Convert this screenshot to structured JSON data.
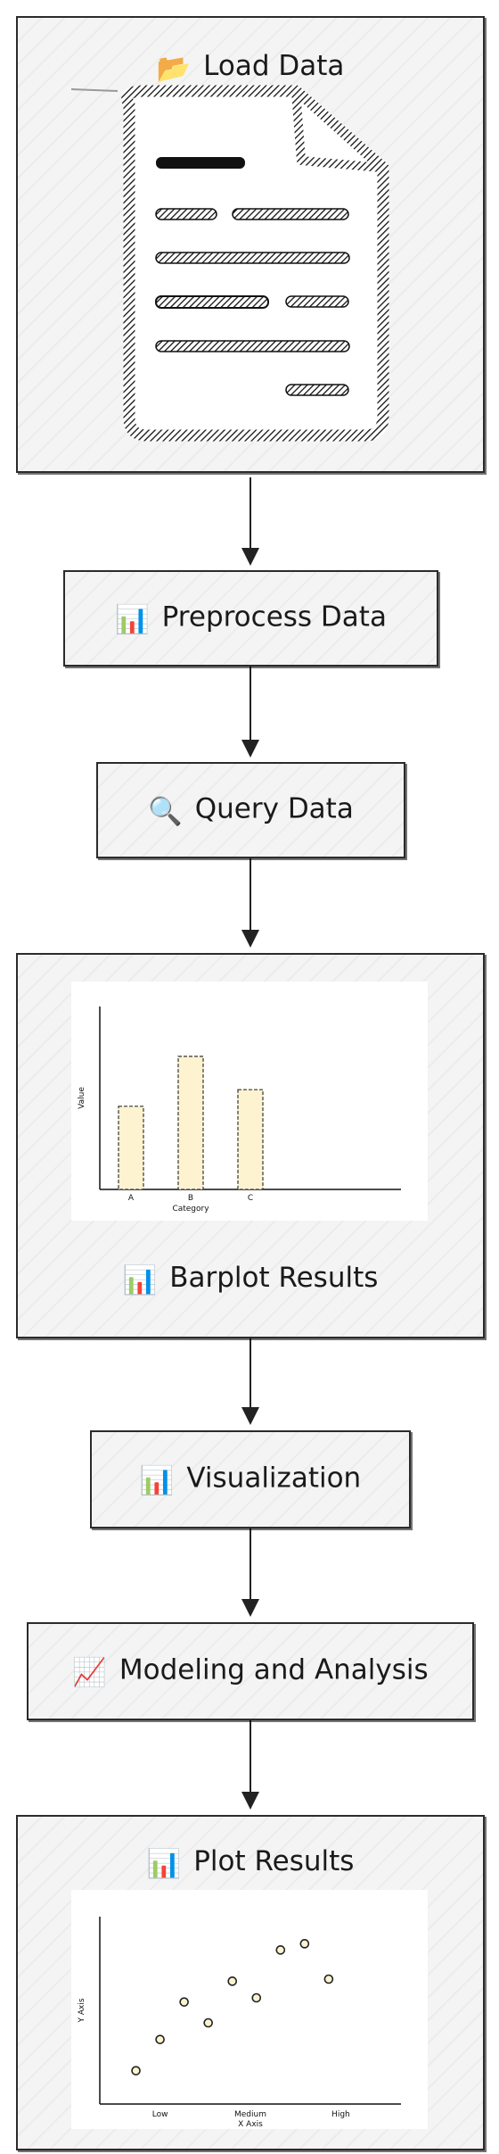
{
  "nodes": [
    {
      "id": "load",
      "label": "Load Data",
      "icon": "folder-icon",
      "emoji": "📂"
    },
    {
      "id": "preprocess",
      "label": "Preprocess Data",
      "icon": "bar-chart-icon",
      "emoji": "📊"
    },
    {
      "id": "query",
      "label": "Query Data",
      "icon": "magnifier-icon",
      "emoji": "🔍"
    },
    {
      "id": "barplot",
      "label": "Barplot Results",
      "icon": "bar-chart-icon",
      "emoji": "📊"
    },
    {
      "id": "viz",
      "label": "Visualization",
      "icon": "bar-chart-icon",
      "emoji": "📊"
    },
    {
      "id": "model",
      "label": "Modeling and Analysis",
      "icon": "trend-chart-icon",
      "emoji": "📈"
    },
    {
      "id": "plot",
      "label": "Plot Results",
      "icon": "bar-chart-icon",
      "emoji": "📊"
    }
  ],
  "chart_data": [
    {
      "type": "bar",
      "categories": [
        "A",
        "B",
        "C"
      ],
      "values": [
        5,
        8,
        6
      ],
      "xlabel": "Category",
      "ylabel": "Value",
      "ylim": [
        0,
        11
      ],
      "bar_fill": "#fdf3d0",
      "bar_stroke": "#333333"
    },
    {
      "type": "scatter",
      "x_ticks": [
        "Low",
        "Medium",
        "High"
      ],
      "xlabel": "X Axis",
      "ylabel": "Y Axis",
      "points": [
        {
          "x": 0.6,
          "y": 1.6
        },
        {
          "x": 1.0,
          "y": 3.1
        },
        {
          "x": 1.4,
          "y": 4.9
        },
        {
          "x": 1.8,
          "y": 3.9
        },
        {
          "x": 2.2,
          "y": 5.9
        },
        {
          "x": 2.6,
          "y": 5.1
        },
        {
          "x": 3.0,
          "y": 7.4
        },
        {
          "x": 3.4,
          "y": 7.7
        },
        {
          "x": 3.8,
          "y": 6.0
        }
      ],
      "xlim": [
        0,
        5
      ],
      "ylim": [
        0,
        9
      ],
      "point_fill": "#fdf3d0",
      "point_stroke": "#222222"
    }
  ]
}
